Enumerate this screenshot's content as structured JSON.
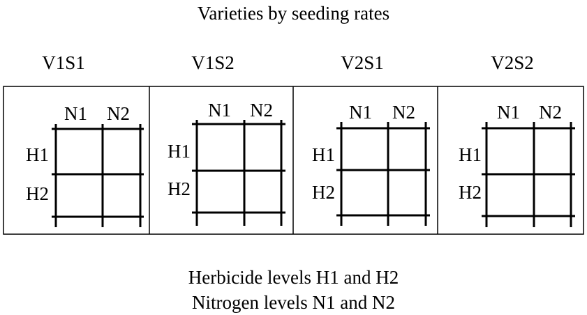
{
  "title": "Varieties by seeding rates",
  "panels": [
    {
      "label": "V1S1",
      "n1": "N1",
      "n2": "N2",
      "h1": "H1",
      "h2": "H2"
    },
    {
      "label": "V1S2",
      "n1": "N1",
      "n2": "N2",
      "h1": "H1",
      "h2": "H2"
    },
    {
      "label": "V2S1",
      "n1": "N1",
      "n2": "N2",
      "h1": "H1",
      "h2": "H2"
    },
    {
      "label": "V2S2",
      "n1": "N1",
      "n2": "N2",
      "h1": "H1",
      "h2": "H2"
    }
  ],
  "caption": {
    "line1": "Herbicide levels H1 and H2",
    "line2": "Nitrogen levels N1 and N2"
  }
}
